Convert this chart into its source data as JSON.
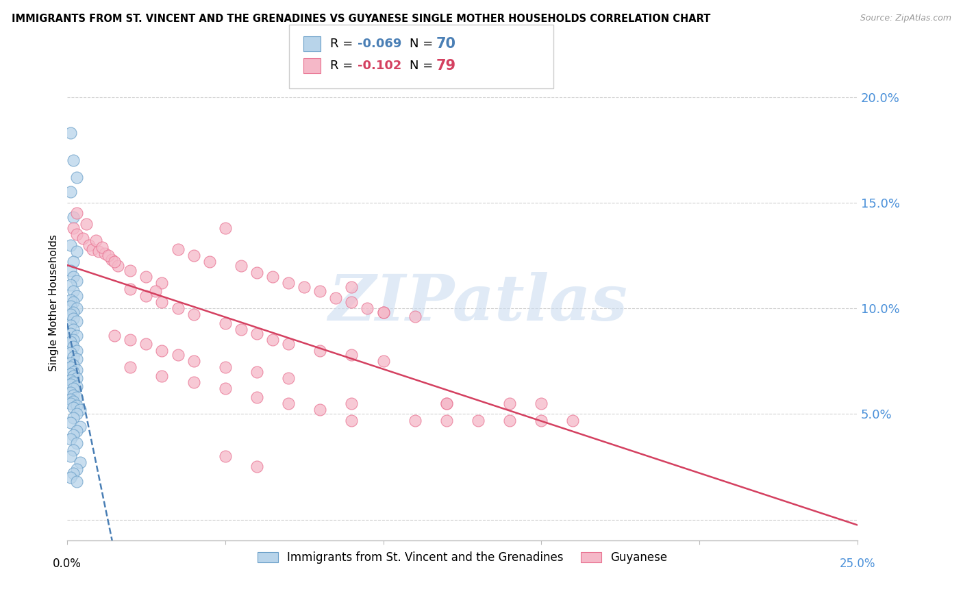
{
  "title": "IMMIGRANTS FROM ST. VINCENT AND THE GRENADINES VS GUYANESE SINGLE MOTHER HOUSEHOLDS CORRELATION CHART",
  "source": "Source: ZipAtlas.com",
  "ylabel": "Single Mother Households",
  "legend_blue_r": "-0.069",
  "legend_blue_n": "70",
  "legend_pink_r": "-0.102",
  "legend_pink_n": "79",
  "legend_label_blue": "Immigrants from St. Vincent and the Grenadines",
  "legend_label_pink": "Guyanese",
  "y_ticks": [
    0.0,
    0.05,
    0.1,
    0.15,
    0.2
  ],
  "y_tick_labels": [
    "",
    "5.0%",
    "10.0%",
    "15.0%",
    "20.0%"
  ],
  "x_ticks": [
    0.0,
    0.05,
    0.1,
    0.15,
    0.2,
    0.25
  ],
  "xlim": [
    0.0,
    0.25
  ],
  "ylim": [
    -0.01,
    0.215
  ],
  "blue_fill": "#b8d4ea",
  "pink_fill": "#f5b8c8",
  "blue_edge": "#6a9fc8",
  "pink_edge": "#e87090",
  "trend_blue_color": "#4a7fb5",
  "trend_pink_color": "#d44060",
  "watermark": "ZIPatlas",
  "blue_scatter_x": [
    0.001,
    0.002,
    0.003,
    0.001,
    0.002,
    0.001,
    0.003,
    0.002,
    0.001,
    0.002,
    0.003,
    0.001,
    0.002,
    0.003,
    0.001,
    0.002,
    0.001,
    0.003,
    0.002,
    0.001,
    0.002,
    0.003,
    0.001,
    0.002,
    0.001,
    0.003,
    0.002,
    0.001,
    0.002,
    0.003,
    0.001,
    0.002,
    0.003,
    0.001,
    0.002,
    0.001,
    0.003,
    0.002,
    0.001,
    0.002,
    0.003,
    0.001,
    0.002,
    0.001,
    0.003,
    0.002,
    0.001,
    0.002,
    0.003,
    0.001,
    0.002,
    0.001,
    0.003,
    0.002,
    0.004,
    0.003,
    0.002,
    0.001,
    0.004,
    0.003,
    0.002,
    0.001,
    0.003,
    0.002,
    0.001,
    0.004,
    0.003,
    0.002,
    0.001,
    0.003
  ],
  "blue_scatter_y": [
    0.183,
    0.17,
    0.162,
    0.155,
    0.143,
    0.13,
    0.127,
    0.122,
    0.118,
    0.115,
    0.113,
    0.111,
    0.108,
    0.106,
    0.104,
    0.103,
    0.101,
    0.1,
    0.098,
    0.097,
    0.095,
    0.094,
    0.092,
    0.09,
    0.088,
    0.087,
    0.085,
    0.084,
    0.082,
    0.08,
    0.079,
    0.077,
    0.076,
    0.074,
    0.073,
    0.072,
    0.071,
    0.07,
    0.069,
    0.068,
    0.067,
    0.066,
    0.065,
    0.064,
    0.063,
    0.062,
    0.06,
    0.059,
    0.058,
    0.057,
    0.056,
    0.055,
    0.054,
    0.053,
    0.052,
    0.05,
    0.048,
    0.046,
    0.044,
    0.042,
    0.04,
    0.038,
    0.036,
    0.033,
    0.03,
    0.027,
    0.024,
    0.022,
    0.02,
    0.018
  ],
  "pink_scatter_x": [
    0.002,
    0.003,
    0.005,
    0.007,
    0.008,
    0.01,
    0.012,
    0.014,
    0.016,
    0.003,
    0.006,
    0.009,
    0.011,
    0.013,
    0.015,
    0.02,
    0.025,
    0.03,
    0.028,
    0.035,
    0.04,
    0.045,
    0.05,
    0.055,
    0.06,
    0.065,
    0.07,
    0.075,
    0.08,
    0.085,
    0.09,
    0.095,
    0.1,
    0.02,
    0.025,
    0.03,
    0.035,
    0.04,
    0.05,
    0.055,
    0.06,
    0.065,
    0.07,
    0.08,
    0.09,
    0.1,
    0.015,
    0.02,
    0.025,
    0.03,
    0.035,
    0.04,
    0.05,
    0.06,
    0.07,
    0.02,
    0.03,
    0.04,
    0.05,
    0.06,
    0.07,
    0.08,
    0.09,
    0.1,
    0.11,
    0.12,
    0.09,
    0.12,
    0.14,
    0.15,
    0.09,
    0.11,
    0.12,
    0.13,
    0.14,
    0.15,
    0.16,
    0.05,
    0.06
  ],
  "pink_scatter_y": [
    0.138,
    0.135,
    0.133,
    0.13,
    0.128,
    0.127,
    0.126,
    0.123,
    0.12,
    0.145,
    0.14,
    0.132,
    0.129,
    0.125,
    0.122,
    0.118,
    0.115,
    0.112,
    0.108,
    0.128,
    0.125,
    0.122,
    0.138,
    0.12,
    0.117,
    0.115,
    0.112,
    0.11,
    0.108,
    0.105,
    0.103,
    0.1,
    0.098,
    0.109,
    0.106,
    0.103,
    0.1,
    0.097,
    0.093,
    0.09,
    0.088,
    0.085,
    0.083,
    0.08,
    0.078,
    0.075,
    0.087,
    0.085,
    0.083,
    0.08,
    0.078,
    0.075,
    0.072,
    0.07,
    0.067,
    0.072,
    0.068,
    0.065,
    0.062,
    0.058,
    0.055,
    0.052,
    0.11,
    0.098,
    0.096,
    0.055,
    0.055,
    0.055,
    0.055,
    0.055,
    0.047,
    0.047,
    0.047,
    0.047,
    0.047,
    0.047,
    0.047,
    0.03,
    0.025
  ]
}
